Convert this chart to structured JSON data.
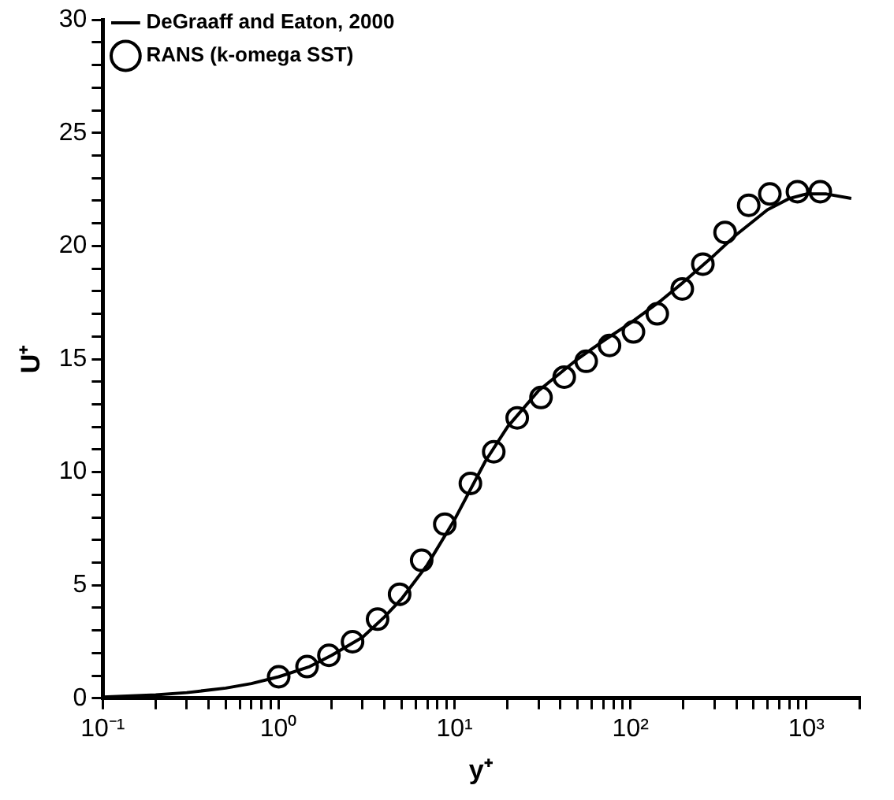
{
  "chart_data": {
    "type": "line",
    "xlabel": "y⁺",
    "ylabel": "U⁺",
    "log": "x",
    "legend": "top left",
    "grid": false,
    "xlim": [
      0.1,
      2000
    ],
    "xticks": [
      {
        "value": 0.1,
        "label": "10⁻¹"
      },
      {
        "value": 0.2,
        "label": null
      },
      {
        "value": 0.3,
        "label": null
      },
      {
        "value": 0.4,
        "label": null
      },
      {
        "value": 0.5,
        "label": null
      },
      {
        "value": 0.6,
        "label": null
      },
      {
        "value": 0.7,
        "label": null
      },
      {
        "value": 0.8,
        "label": null
      },
      {
        "value": 0.9,
        "label": null
      },
      {
        "value": 1,
        "label": "10⁰"
      },
      {
        "value": 2,
        "label": null
      },
      {
        "value": 3,
        "label": null
      },
      {
        "value": 4,
        "label": null
      },
      {
        "value": 5,
        "label": null
      },
      {
        "value": 6,
        "label": null
      },
      {
        "value": 7,
        "label": null
      },
      {
        "value": 8,
        "label": null
      },
      {
        "value": 9,
        "label": null
      },
      {
        "value": 10,
        "label": "10¹"
      },
      {
        "value": 20,
        "label": null
      },
      {
        "value": 30,
        "label": null
      },
      {
        "value": 40,
        "label": null
      },
      {
        "value": 50,
        "label": null
      },
      {
        "value": 60,
        "label": null
      },
      {
        "value": 70,
        "label": null
      },
      {
        "value": 80,
        "label": null
      },
      {
        "value": 90,
        "label": null
      },
      {
        "value": 100,
        "label": "10²"
      },
      {
        "value": 200,
        "label": null
      },
      {
        "value": 300,
        "label": null
      },
      {
        "value": 400,
        "label": null
      },
      {
        "value": 500,
        "label": null
      },
      {
        "value": 600,
        "label": null
      },
      {
        "value": 700,
        "label": null
      },
      {
        "value": 800,
        "label": null
      },
      {
        "value": 900,
        "label": null
      },
      {
        "value": 1000,
        "label": "10³"
      },
      {
        "value": 2000,
        "label": null
      }
    ],
    "ylim": [
      0,
      30
    ],
    "yticks": [
      0,
      {
        "value": 1,
        "label": null
      },
      {
        "value": 2,
        "label": null
      },
      {
        "value": 3,
        "label": null
      },
      {
        "value": 4,
        "label": null
      },
      5,
      {
        "value": 6,
        "label": null
      },
      {
        "value": 7,
        "label": null
      },
      {
        "value": 8,
        "label": null
      },
      {
        "value": 9,
        "label": null
      },
      10,
      {
        "value": 11,
        "label": null
      },
      {
        "value": 12,
        "label": null
      },
      {
        "value": 13,
        "label": null
      },
      {
        "value": 14,
        "label": null
      },
      15,
      {
        "value": 16,
        "label": null
      },
      {
        "value": 17,
        "label": null
      },
      {
        "value": 18,
        "label": null
      },
      {
        "value": 19,
        "label": null
      },
      20,
      {
        "value": 21,
        "label": null
      },
      {
        "value": 22,
        "label": null
      },
      {
        "value": 23,
        "label": null
      },
      {
        "value": 24,
        "label": null
      },
      25,
      {
        "value": 26,
        "label": null
      },
      {
        "value": 27,
        "label": null
      },
      {
        "value": 28,
        "label": null
      },
      {
        "value": 29,
        "label": null
      },
      30
    ],
    "series": [
      {
        "name": "DeGraaff and Eaton, 2000",
        "color": "#000000",
        "marker": "none",
        "line_style": "solid",
        "x": [
          0.1,
          0.2,
          0.3,
          0.5,
          0.7,
          1,
          1.5,
          2,
          3,
          4,
          5,
          7,
          10,
          15,
          20,
          30,
          50,
          70,
          100,
          150,
          200,
          300,
          400,
          500,
          600,
          800,
          1000,
          1300,
          1800
        ],
        "values": [
          0.05,
          0.15,
          0.25,
          0.45,
          0.65,
          0.95,
          1.4,
          1.9,
          2.7,
          3.6,
          4.4,
          5.9,
          7.9,
          10.5,
          12.0,
          13.6,
          15.0,
          15.8,
          16.6,
          17.6,
          18.4,
          19.6,
          20.5,
          21.1,
          21.6,
          22.1,
          22.3,
          22.3,
          22.1
        ]
      },
      {
        "name": "RANS (k-omega SST)",
        "type": "scatter",
        "color": "#000000",
        "marker": "circle",
        "x": [
          1.0,
          1.45,
          1.93,
          2.63,
          3.65,
          4.87,
          6.5,
          8.8,
          12.3,
          16.7,
          22.7,
          31,
          42,
          56,
          76,
          104,
          142,
          197,
          258,
          345,
          470,
          620,
          890,
          1200
        ],
        "values": [
          0.95,
          1.4,
          1.9,
          2.5,
          3.5,
          4.6,
          6.1,
          7.7,
          9.5,
          10.9,
          12.4,
          13.3,
          14.2,
          14.9,
          15.6,
          16.2,
          17.0,
          18.1,
          19.2,
          20.6,
          21.8,
          22.3,
          22.4,
          22.4
        ]
      }
    ]
  }
}
